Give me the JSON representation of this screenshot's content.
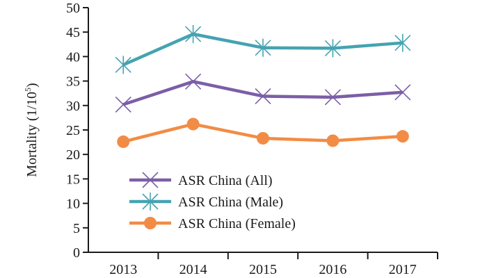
{
  "chart_data": {
    "type": "line",
    "title": "",
    "xlabel": "",
    "ylabel": "Mortality (1/10",
    "ylabel_superscript": "5",
    "ylabel_close": ")",
    "categories": [
      "2013",
      "2014",
      "2015",
      "2016",
      "2017"
    ],
    "ylim": [
      0,
      50
    ],
    "yticks": [
      0,
      5,
      10,
      15,
      20,
      25,
      30,
      35,
      40,
      45,
      50
    ],
    "grid": false,
    "legend_position": "bottom-left",
    "series": [
      {
        "name": "ASR China (All)",
        "marker": "x",
        "color": "#7b5ea7",
        "values": [
          30.2,
          34.9,
          31.9,
          31.7,
          32.7
        ]
      },
      {
        "name": "ASR China (Male)",
        "marker": "asterisk",
        "color": "#45a3b1",
        "values": [
          38.3,
          44.6,
          41.8,
          41.7,
          42.8
        ]
      },
      {
        "name": "ASR China (Female)",
        "marker": "circle",
        "color": "#f28c45",
        "values": [
          22.6,
          26.2,
          23.3,
          22.8,
          23.7
        ]
      }
    ]
  }
}
